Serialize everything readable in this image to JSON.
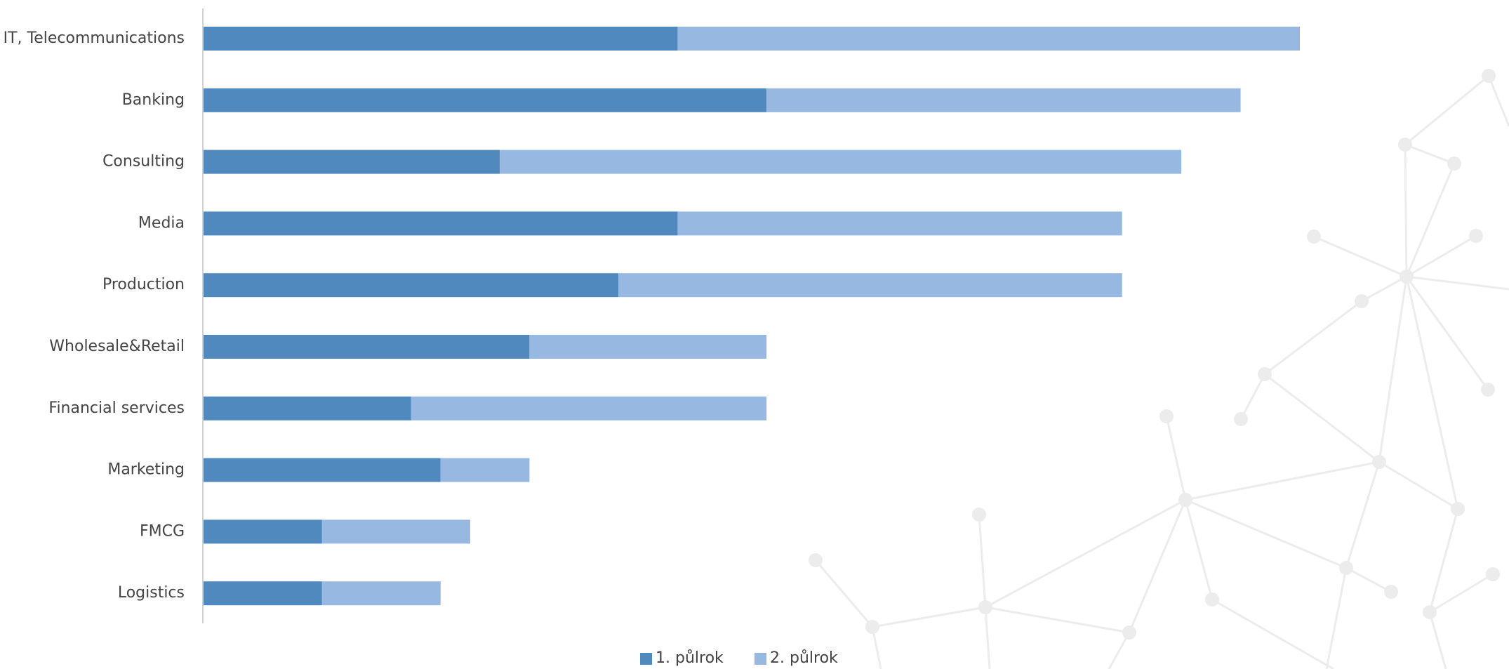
{
  "chart_data": {
    "type": "stacked-barh",
    "categories": [
      "IT, Telecommunications",
      "Banking",
      "Consulting",
      "Media",
      "Production",
      "Wholesale&Retail",
      "Financial services",
      "Marketing",
      "FMCG",
      "Logistics"
    ],
    "series": [
      {
        "name": "1. půlrok",
        "color": "#4f89be",
        "values": [
          16,
          19,
          10,
          16,
          14,
          11,
          7,
          8,
          4,
          4
        ]
      },
      {
        "name": "2. půlrok",
        "color": "#97b8e0",
        "values": [
          21,
          16,
          23,
          15,
          17,
          8,
          12,
          3,
          5,
          4
        ]
      }
    ],
    "legend": "bottom"
  }
}
